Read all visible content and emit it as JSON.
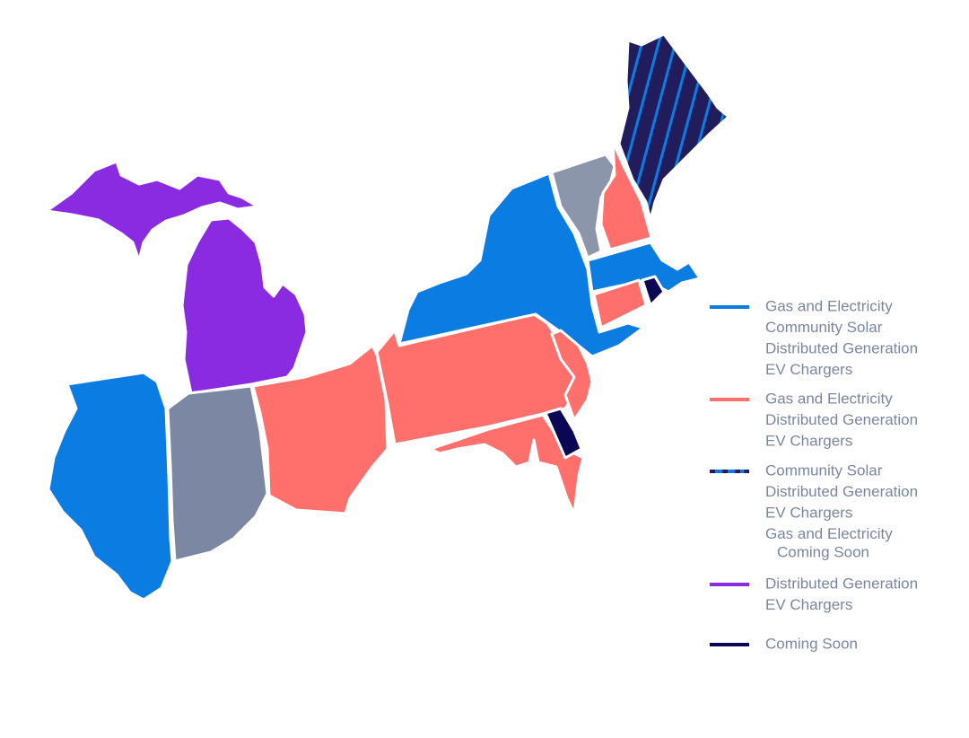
{
  "legend": [
    {
      "lines": [
        "Gas and Electricity",
        "Community Solar",
        "Distributed Generation",
        "EV Chargers"
      ],
      "color": "#0b7ce2"
    },
    {
      "lines": [
        "Gas and Electricity",
        "Distributed Generation",
        "EV Chargers"
      ],
      "color": "#ff6f6b"
    },
    {
      "lines": [
        "Community Solar",
        "Distributed Generation",
        "EV Chargers",
        "Gas and Electricity",
        "Coming Soon"
      ],
      "color": "#211d5c",
      "stripe_color": "#0b7ce2"
    },
    {
      "lines": [
        "Distributed Generation",
        "EV Chargers"
      ],
      "color": "#8a2be2"
    },
    {
      "lines": [
        "Coming Soon"
      ],
      "color": "#0c0754"
    }
  ]
}
